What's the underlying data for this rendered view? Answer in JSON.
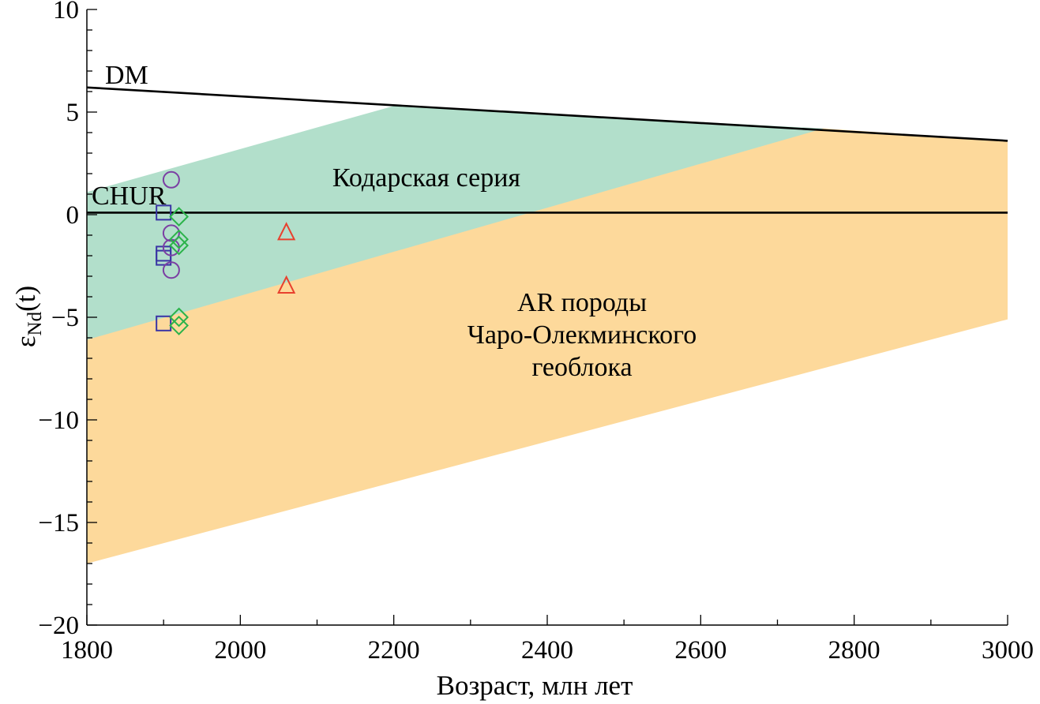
{
  "chart_data": {
    "type": "scatter",
    "xlabel": "Возраст, млн лет",
    "ylabel_main": "ε",
    "ylabel_sub": "Nd",
    "ylabel_suffix": "(t)",
    "xlim": [
      1800,
      3000
    ],
    "ylim": [
      -20,
      10
    ],
    "x_ticks": [
      1800,
      2000,
      2200,
      2400,
      2600,
      2800,
      3000
    ],
    "x_tick_labels": [
      "1800",
      "2000",
      "2200",
      "2400",
      "2600",
      "2800",
      "3000"
    ],
    "y_ticks": [
      10,
      5,
      0,
      -5,
      -10,
      -15,
      -20
    ],
    "y_tick_labels": [
      "10",
      "5",
      "0",
      "−5",
      "−10",
      "−15",
      "−20"
    ],
    "lines": [
      {
        "name": "DM",
        "points": [
          [
            1800,
            6.2
          ],
          [
            3000,
            3.6
          ]
        ],
        "color": "#000000"
      },
      {
        "name": "CHUR",
        "points": [
          [
            1800,
            0.1
          ],
          [
            3000,
            0.1
          ]
        ],
        "color": "#000000"
      }
    ],
    "regions": [
      {
        "name": "AR породы Чаро-Олекминского геоблока",
        "color": "#fdd99b",
        "polygon": [
          [
            1800,
            -17
          ],
          [
            3000,
            -5.1
          ],
          [
            3000,
            3.6
          ],
          [
            2760,
            4.2
          ],
          [
            1800,
            -0.4
          ]
        ]
      },
      {
        "name": "Кодарская серия",
        "color": "#b2dfcb",
        "polygon": [
          [
            1800,
            -6.1
          ],
          [
            2760,
            4.2
          ],
          [
            2200,
            5.3
          ],
          [
            1800,
            1.1
          ]
        ]
      }
    ],
    "series": [
      {
        "marker": "square",
        "color": "#3a35a5",
        "points": [
          [
            1900,
            0.1
          ],
          [
            1900,
            -1.9
          ],
          [
            1900,
            -2.1
          ],
          [
            1900,
            -5.3
          ]
        ]
      },
      {
        "marker": "circle",
        "color": "#7b3fa3",
        "points": [
          [
            1910,
            1.7
          ],
          [
            1910,
            -0.9
          ],
          [
            1910,
            -1.6
          ],
          [
            1910,
            -2.7
          ]
        ]
      },
      {
        "marker": "diamond",
        "color": "#2bb34a",
        "points": [
          [
            1920,
            -0.1
          ],
          [
            1920,
            -1.2
          ],
          [
            1920,
            -1.5
          ],
          [
            1920,
            -5.0
          ],
          [
            1920,
            -5.4
          ]
        ]
      },
      {
        "marker": "triangle",
        "color": "#e8412e",
        "points": [
          [
            2060,
            -0.9
          ],
          [
            2060,
            -3.5
          ]
        ]
      }
    ],
    "annotations": {
      "dm": "DM",
      "chur": "CHUR",
      "kodar": "Кодарская серия",
      "ar_line1": "AR породы",
      "ar_line2": "Чаро-Олекминского",
      "ar_line3": "геоблока"
    }
  }
}
